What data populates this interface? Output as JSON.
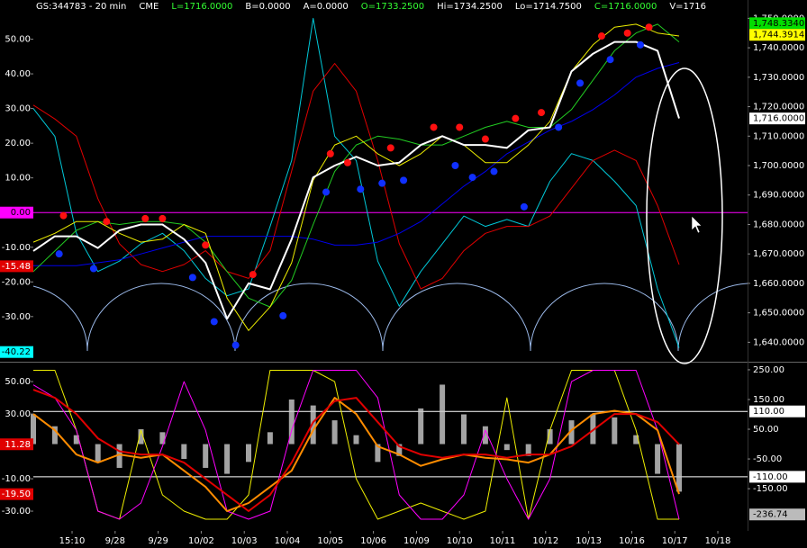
{
  "header": {
    "fields": [
      {
        "text": "GS:344783 - 20 min",
        "color": "#ffffff"
      },
      {
        "text": "CME",
        "color": "#ffffff"
      },
      {
        "text": "L=1716.0000",
        "color": "#33ff33"
      },
      {
        "text": "B=0.0000",
        "color": "#ffffff"
      },
      {
        "text": "A=0.0000",
        "color": "#ffffff"
      },
      {
        "text": "O=1733.2500",
        "color": "#33ff33"
      },
      {
        "text": "Hi=1734.2500",
        "color": "#ffffff"
      },
      {
        "text": "Lo=1714.7500",
        "color": "#ffffff"
      },
      {
        "text": "C=1716.0000",
        "color": "#33ff33"
      },
      {
        "text": "V=1716",
        "color": "#ffffff"
      }
    ]
  },
  "chart_data": [
    {
      "type": "line",
      "x": [
        -0.9,
        -0.4,
        0.1,
        0.6,
        1.1,
        1.6,
        2.1,
        2.6,
        3.1,
        3.6,
        4.1,
        4.6,
        5.1,
        5.6,
        6.1,
        6.6,
        7.1,
        7.6,
        8.1,
        8.6,
        9.1,
        9.6,
        10.1,
        10.6,
        11.1,
        11.6,
        12.1,
        12.6,
        13.1,
        13.6,
        14.1
      ],
      "xlim": [
        -0.9,
        15.69
      ],
      "ylim": [
        -42.5,
        60
      ],
      "y2lim": [
        1634,
        1754.7
      ],
      "yticks": [
        {
          "value": 50,
          "label": "50.00"
        },
        {
          "value": 40,
          "label": "40.00"
        },
        {
          "value": 30,
          "label": "30.00"
        },
        {
          "value": 20,
          "label": "20.00"
        },
        {
          "value": 10,
          "label": "10.00"
        },
        {
          "value": -10,
          "label": "-10.00"
        },
        {
          "value": -20,
          "label": "-20.00"
        },
        {
          "value": -30,
          "label": "-30.00"
        }
      ],
      "y2ticks": [
        {
          "value": 1750,
          "label": "1,750.0000"
        },
        {
          "value": 1740,
          "label": "1,740.0000"
        },
        {
          "value": 1730,
          "label": "1,730.0000"
        },
        {
          "value": 1720,
          "label": "1,720.0000"
        },
        {
          "value": 1710,
          "label": "1,710.0000"
        },
        {
          "value": 1700,
          "label": "1,700.0000"
        },
        {
          "value": 1690,
          "label": "1,690.0000"
        },
        {
          "value": 1680,
          "label": "1,680.0000"
        },
        {
          "value": 1670,
          "label": "1,670.0000"
        },
        {
          "value": 1660,
          "label": "1,660.0000"
        },
        {
          "value": 1650,
          "label": "1,650.0000"
        },
        {
          "value": 1640,
          "label": "1,640.0000"
        }
      ],
      "hlines": [
        {
          "value": 0,
          "label": "0.00",
          "color": "#ff00ff",
          "text_color": "#000000"
        }
      ],
      "markers": [
        {
          "value": -15.48,
          "label": "-15.48",
          "color": "#e00000",
          "text_color": "#ffffff"
        },
        {
          "value": -40.22,
          "label": "-40.22",
          "color": "#00ffff",
          "text_color": "#000000"
        },
        {
          "value": 1748.334,
          "label": "1,748.3340",
          "axis": "y2",
          "color": "#00dd00",
          "text_color": "#000000"
        },
        {
          "value": 1744.3914,
          "label": "1,744.3914",
          "axis": "y2",
          "color": "#ffff00",
          "text_color": "#000000"
        },
        {
          "value": 1716,
          "label": "1,716.0000",
          "axis": "y2",
          "color": "#ffffff",
          "text_color": "#000000"
        }
      ],
      "series": [
        {
          "style": "line",
          "color": "#00c8d8",
          "width": 1,
          "values": [
            30,
            22,
            -6,
            -17,
            -14,
            -9,
            -6,
            -11,
            -19,
            -24,
            -22,
            -4,
            15,
            56,
            22,
            15,
            -14,
            -27,
            -17,
            -9,
            -1,
            -4,
            -2,
            -4,
            9,
            17,
            15,
            9,
            2,
            -22,
            -39
          ]
        },
        {
          "style": "line",
          "color": "#e00000",
          "width": 1,
          "values": [
            31,
            27,
            22,
            4,
            -9,
            -15,
            -17,
            -15,
            -11,
            -17,
            -19,
            -11,
            12,
            35,
            43,
            35,
            15,
            -9,
            -22,
            -19,
            -11,
            -6,
            -4,
            -4,
            -1,
            7,
            15,
            18,
            15,
            2,
            -15
          ]
        },
        {
          "style": "line",
          "color": "#0000ee",
          "width": 1,
          "axis": "y2",
          "values": [
            1666,
            1666,
            1666,
            1667,
            1668,
            1670,
            1672,
            1674,
            1676,
            1676,
            1676,
            1676,
            1676,
            1675,
            1673,
            1673,
            1674,
            1677,
            1681,
            1687,
            1693,
            1698,
            1704,
            1708,
            1712,
            1715,
            1719,
            1724,
            1730,
            1733,
            1735
          ]
        },
        {
          "style": "line",
          "color": "#22cc22",
          "width": 1,
          "axis": "y2",
          "values": [
            1664,
            1671,
            1678,
            1681,
            1680,
            1681,
            1681,
            1680,
            1674,
            1664,
            1655,
            1652,
            1661,
            1680,
            1698,
            1707,
            1710,
            1709,
            1707,
            1707,
            1710,
            1713,
            1715,
            1713,
            1713,
            1719,
            1729,
            1739,
            1745,
            1748,
            1742
          ]
        },
        {
          "style": "line",
          "color": "#eeee00",
          "width": 1,
          "axis": "y2",
          "values": [
            1674,
            1677,
            1681,
            1681,
            1677,
            1674,
            1675,
            1680,
            1677,
            1655,
            1644,
            1652,
            1667,
            1695,
            1707,
            1710,
            1704,
            1700,
            1704,
            1710,
            1707,
            1701,
            1701,
            1707,
            1715,
            1732,
            1741,
            1747,
            1748,
            1745,
            1744
          ]
        },
        {
          "style": "line",
          "color": "#ffffff",
          "width": 2,
          "axis": "y2",
          "values": [
            1671,
            1676,
            1676,
            1672,
            1678,
            1680,
            1680,
            1675,
            1667,
            1648,
            1660,
            1658,
            1675,
            1696,
            1700,
            1703,
            1700,
            1701,
            1707,
            1710,
            1707,
            1707,
            1706,
            1712,
            1713,
            1732,
            1738,
            1742,
            1742,
            1739,
            1716
          ]
        },
        {
          "style": "dots",
          "color": "#ff1010",
          "axis": "y2",
          "x": [
            -0.2,
            0.8,
            1.7,
            2.1,
            3.1,
            4.2,
            6.0,
            6.4,
            7.4,
            8.4,
            9.0,
            9.6,
            10.3,
            10.9,
            12.3,
            12.9,
            13.4
          ],
          "values": [
            1683,
            1681,
            1682,
            1682,
            1673,
            1663,
            1704,
            1701,
            1706,
            1713,
            1713,
            1709,
            1716,
            1718,
            1744,
            1745,
            1747
          ]
        },
        {
          "style": "dots",
          "color": "#1030ff",
          "axis": "y2",
          "x": [
            -0.3,
            0.5,
            2.8,
            3.3,
            3.8,
            4.9,
            5.9,
            6.7,
            7.2,
            7.7,
            8.9,
            9.3,
            9.8,
            10.5,
            11.3,
            11.8,
            12.5,
            13.2
          ],
          "values": [
            1670,
            1665,
            1662,
            1647,
            1639,
            1649,
            1691,
            1692,
            1694,
            1695,
            1700,
            1696,
            1698,
            1686,
            1713,
            1728,
            1736,
            1741
          ]
        }
      ]
    },
    {
      "type": "line",
      "x": [
        -0.9,
        -0.4,
        0.1,
        0.6,
        1.1,
        1.6,
        2.1,
        2.6,
        3.1,
        3.6,
        4.1,
        4.6,
        5.1,
        5.6,
        6.1,
        6.6,
        7.1,
        7.6,
        8.1,
        8.6,
        9.1,
        9.6,
        10.1,
        10.6,
        11.1,
        11.6,
        12.1,
        12.6,
        13.1,
        13.6,
        14.1
      ],
      "xlim": [
        -0.9,
        15.69
      ],
      "xticks": [
        {
          "value": 0,
          "label": "15:10"
        },
        {
          "value": 1,
          "label": "9/28"
        },
        {
          "value": 2,
          "label": "9/29"
        },
        {
          "value": 3,
          "label": "10/02"
        },
        {
          "value": 4,
          "label": "10/03"
        },
        {
          "value": 5,
          "label": "10/04"
        },
        {
          "value": 6,
          "label": "10/05"
        },
        {
          "value": 7,
          "label": "10/06"
        },
        {
          "value": 8,
          "label": "10/09"
        },
        {
          "value": 9,
          "label": "10/10"
        },
        {
          "value": 10,
          "label": "10/11"
        },
        {
          "value": 11,
          "label": "10/12"
        },
        {
          "value": 12,
          "label": "10/13"
        },
        {
          "value": 13,
          "label": "10/16"
        },
        {
          "value": 14,
          "label": "10/17"
        },
        {
          "value": 15,
          "label": "10/18"
        }
      ],
      "ylim": [
        -42.2,
        60.6
      ],
      "y2lim": [
        -292,
        268
      ],
      "yticks": [
        {
          "value": 50,
          "label": "50.00"
        },
        {
          "value": 30,
          "label": "30.00"
        },
        {
          "value": -10,
          "label": "-10.00"
        },
        {
          "value": -30,
          "label": "-30.00"
        }
      ],
      "y2ticks": [
        {
          "value": 250,
          "label": "250.00"
        },
        {
          "value": 150,
          "label": "150.00"
        },
        {
          "value": 50,
          "label": "50.00"
        },
        {
          "value": -50,
          "label": "-50.00"
        },
        {
          "value": -150,
          "label": "-150.00"
        }
      ],
      "hlines": [
        {
          "value": 110,
          "label": "110.00",
          "axis": "y2",
          "color": "#ffffff",
          "text_color": "#000000"
        },
        {
          "value": -110,
          "label": "-110.00",
          "axis": "y2",
          "color": "#ffffff",
          "text_color": "#000000"
        }
      ],
      "markers": [
        {
          "value": 11.28,
          "label": "11.28",
          "color": "#e00000",
          "text_color": "#ffffff"
        },
        {
          "value": -19.5,
          "label": "-19.50",
          "color": "#e00000",
          "text_color": "#ffffff"
        },
        {
          "value": -236.74,
          "label": "-236.74",
          "axis": "y2",
          "color": "#bbbbbb",
          "text_color": "#000000"
        }
      ],
      "series": [
        {
          "style": "bars",
          "color": "#cccccc",
          "axis": "y2",
          "values": [
            100,
            60,
            30,
            -60,
            -80,
            50,
            40,
            -50,
            -80,
            -100,
            -60,
            40,
            150,
            130,
            80,
            30,
            -60,
            -40,
            120,
            200,
            100,
            60,
            -20,
            -40,
            50,
            80,
            100,
            90,
            30,
            -100,
            -160
          ]
        },
        {
          "style": "line",
          "color": "#eeee00",
          "width": 1,
          "values": [
            57,
            57,
            20,
            -30,
            -35,
            20,
            -20,
            -30,
            -35,
            -35,
            -20,
            57,
            57,
            57,
            50,
            -10,
            -35,
            -30,
            -25,
            -30,
            -35,
            -30,
            40,
            -35,
            20,
            57,
            57,
            57,
            20,
            -35,
            -35
          ]
        },
        {
          "style": "line",
          "color": "#ff00ff",
          "width": 1,
          "values": [
            48,
            40,
            20,
            -30,
            -35,
            -25,
            10,
            50,
            20,
            -30,
            -35,
            -30,
            20,
            57,
            57,
            57,
            40,
            -20,
            -35,
            -35,
            -20,
            20,
            -10,
            -35,
            -10,
            50,
            57,
            57,
            57,
            20,
            -35
          ]
        },
        {
          "style": "line",
          "color": "#ff8c00",
          "width": 2,
          "values": [
            30,
            20,
            5,
            0,
            5,
            3,
            5,
            -5,
            -15,
            -30,
            -25,
            -15,
            -5,
            20,
            40,
            30,
            10,
            5,
            -2,
            2,
            5,
            3,
            2,
            0,
            5,
            20,
            30,
            32,
            30,
            20,
            -19.5
          ]
        },
        {
          "style": "line",
          "color": "#e00000",
          "width": 2,
          "values": [
            45,
            40,
            30,
            15,
            7,
            5,
            5,
            0,
            -10,
            -20,
            -30,
            -20,
            0,
            25,
            38,
            40,
            25,
            10,
            5,
            3,
            5,
            5,
            3,
            5,
            5,
            10,
            20,
            30,
            30,
            25,
            11.28
          ]
        }
      ]
    }
  ]
}
